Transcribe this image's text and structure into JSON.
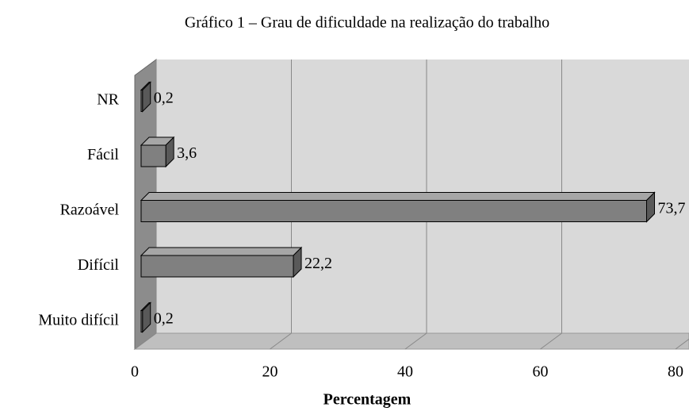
{
  "chart_data": {
    "type": "bar3d_horizontal",
    "title": "Gráfico 1 – Grau de dificuldade na realização do trabalho",
    "x_label": "Percentagem",
    "categories": [
      "NR",
      "Fácil",
      "Razoável",
      "Difícil",
      "Muito difícil"
    ],
    "values": [
      0.2,
      3.6,
      73.7,
      22.2,
      0.2
    ],
    "value_labels": [
      "0,2",
      "3,6",
      "73,7",
      "22,2",
      "0,2"
    ],
    "color": "#808080",
    "xlim": [
      0,
      80
    ],
    "xticks": [
      0,
      20,
      40,
      60,
      80
    ],
    "grid": true
  }
}
